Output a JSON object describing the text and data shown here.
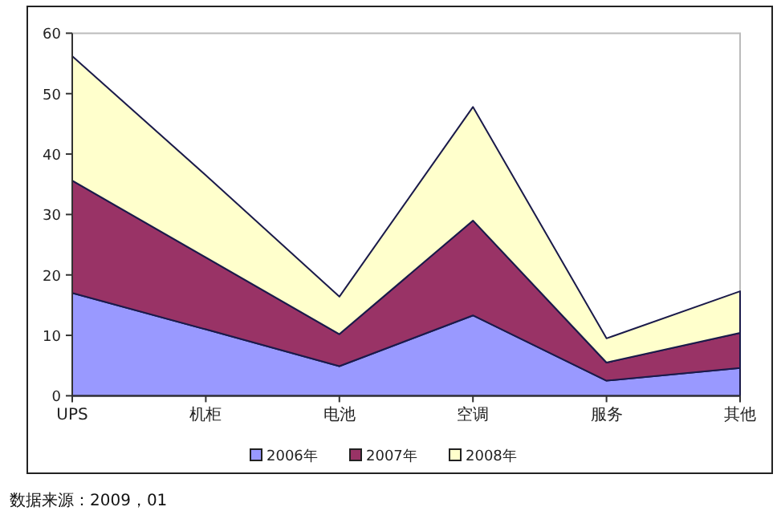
{
  "chart_data": {
    "type": "area",
    "stacked": true,
    "categories": [
      "UPS",
      "机柜",
      "电池",
      "空调",
      "服务",
      "其他"
    ],
    "series": [
      {
        "name": "2006年",
        "color": "#9999ff",
        "values": [
          17.0,
          11.0,
          4.9,
          13.3,
          2.5,
          4.6
        ]
      },
      {
        "name": "2007年",
        "color": "#993366",
        "values": [
          18.6,
          11.9,
          5.3,
          15.7,
          3.0,
          5.8
        ]
      },
      {
        "name": "2008年",
        "color": "#ffffcc",
        "values": [
          20.6,
          13.6,
          6.2,
          18.8,
          4.0,
          6.9
        ]
      }
    ],
    "ylim": [
      0,
      60
    ],
    "yticks": [
      0,
      10,
      20,
      30,
      40,
      50,
      60
    ],
    "grid": false,
    "legend": "bottom",
    "annotations": [
      "数据来源：2009，01"
    ]
  }
}
